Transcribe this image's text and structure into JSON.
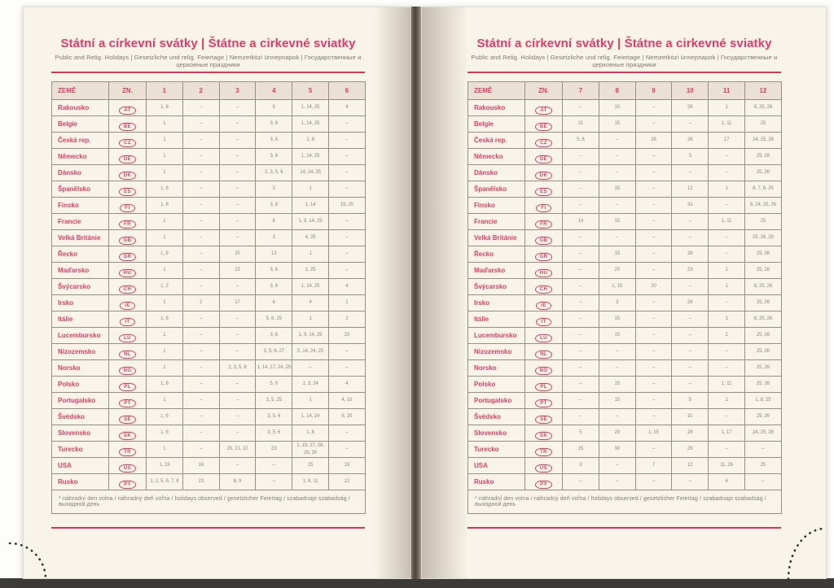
{
  "book": {
    "title": "Státní a církevní svátky | Štátne a cirkevné sviatky",
    "subtitle": "Public and Relig. Holidays | Gesetzliche und relig. Feiertage | Nemzetközi ünnepnapok | Государственные и церковные праздники",
    "footnote": "* náhradní den volna / náhradný deň voľna / holidays observed / gesetzlicher Feiertag / szabadnapi szabadság / выходной день",
    "column_headers": {
      "country": "ZEMĚ",
      "code": "ZN."
    },
    "accent_color": "#e23a69",
    "pages": [
      {
        "months": [
          "1",
          "2",
          "3",
          "4",
          "5",
          "6"
        ],
        "rows": [
          {
            "country": "Rakousko",
            "code": "AT",
            "values": [
              "1, 6",
              "–",
              "–",
              "6",
              "1, 14, 25",
              "4"
            ]
          },
          {
            "country": "Belgie",
            "code": "BE",
            "values": [
              "1",
              "–",
              "–",
              "3, 6",
              "1, 14, 25",
              "–"
            ]
          },
          {
            "country": "Česká rep.",
            "code": "CZ",
            "values": [
              "1",
              "–",
              "–",
              "3, 6",
              "1, 8",
              "–"
            ]
          },
          {
            "country": "Německo",
            "code": "DE",
            "values": [
              "1",
              "–",
              "–",
              "3, 6",
              "1, 14, 25",
              "–"
            ]
          },
          {
            "country": "Dánsko",
            "code": "DK",
            "values": [
              "1",
              "–",
              "–",
              "2, 3, 5, 6",
              "14, 24, 25",
              "–"
            ]
          },
          {
            "country": "Španělsko",
            "code": "ES",
            "values": [
              "1, 6",
              "–",
              "–",
              "3",
              "1",
              "–"
            ]
          },
          {
            "country": "Finsko",
            "code": "FI",
            "values": [
              "1, 6",
              "–",
              "–",
              "3, 6",
              "1, 14",
              "19, 20"
            ]
          },
          {
            "country": "Francie",
            "code": "FR",
            "values": [
              "1",
              "–",
              "–",
              "6",
              "1, 8, 14, 25",
              "–"
            ]
          },
          {
            "country": "Velká Británie",
            "code": "GB",
            "values": [
              "1",
              "–",
              "–",
              "3",
              "4, 25",
              "–"
            ]
          },
          {
            "country": "Řecko",
            "code": "GR",
            "values": [
              "1, 6",
              "–",
              "25",
              "13",
              "1",
              "–"
            ]
          },
          {
            "country": "Maďarsko",
            "code": "HU",
            "values": [
              "1",
              "–",
              "15",
              "3, 6",
              "1, 25",
              "–"
            ]
          },
          {
            "country": "Švýcarsko",
            "code": "CH",
            "values": [
              "1, 2",
              "–",
              "–",
              "3, 6",
              "1, 14, 25",
              "4"
            ]
          },
          {
            "country": "Irsko",
            "code": "IE",
            "values": [
              "1",
              "2",
              "17",
              "6",
              "4",
              "1"
            ]
          },
          {
            "country": "Itálie",
            "code": "IT",
            "values": [
              "1, 6",
              "–",
              "–",
              "5, 6, 25",
              "1",
              "2"
            ]
          },
          {
            "country": "Lucembursko",
            "code": "LU",
            "values": [
              "1",
              "–",
              "–",
              "3, 6",
              "1, 9, 14, 25",
              "23"
            ]
          },
          {
            "country": "Nizozemsko",
            "code": "NL",
            "values": [
              "1",
              "–",
              "–",
              "3, 5, 6, 27",
              "5, 14, 24, 25",
              "–"
            ]
          },
          {
            "country": "Norsko",
            "code": "NO",
            "values": [
              "1",
              "–",
              "2, 3, 5, 6",
              "1, 14, 17, 24, 25",
              "–",
              "–"
            ]
          },
          {
            "country": "Polsko",
            "code": "PL",
            "values": [
              "1, 6",
              "–",
              "–",
              "5, 6",
              "1, 3, 24",
              "4"
            ]
          },
          {
            "country": "Portugalsko",
            "code": "PT",
            "values": [
              "1",
              "–",
              "–",
              "3, 5, 25",
              "1",
              "4, 10"
            ]
          },
          {
            "country": "Švédsko",
            "code": "SE",
            "values": [
              "1, 6",
              "–",
              "–",
              "3, 5, 6",
              "1, 14, 24",
              "6, 20"
            ]
          },
          {
            "country": "Slovensko",
            "code": "SK",
            "values": [
              "1, 6",
              "–",
              "–",
              "3, 5, 6",
              "1, 8",
              "–"
            ]
          },
          {
            "country": "Turecko",
            "code": "TR",
            "values": [
              "1",
              "–",
              "20, 21, 22",
              "23",
              "1, 19, 27, 28, 29, 30",
              "–"
            ]
          },
          {
            "country": "USA",
            "code": "US",
            "values": [
              "1, 19",
              "16",
              "–",
              "–",
              "25",
              "19"
            ]
          },
          {
            "country": "Rusko",
            "code": "PY",
            "values": [
              "1, 2, 5, 6, 7, 8",
              "23",
              "8, 9",
              "–",
              "1, 9, 11",
              "12"
            ]
          }
        ]
      },
      {
        "months": [
          "7",
          "8",
          "9",
          "10",
          "11",
          "12"
        ],
        "rows": [
          {
            "country": "Rakousko",
            "code": "AT",
            "values": [
              "–",
              "15",
              "–",
              "26",
              "1",
              "8, 25, 26"
            ]
          },
          {
            "country": "Belgie",
            "code": "BE",
            "values": [
              "21",
              "15",
              "–",
              "–",
              "1, 11",
              "25"
            ]
          },
          {
            "country": "Česká rep.",
            "code": "CZ",
            "values": [
              "5, 6",
              "–",
              "28",
              "28",
              "17",
              "24, 25, 26"
            ]
          },
          {
            "country": "Německo",
            "code": "DE",
            "values": [
              "–",
              "–",
              "–",
              "3",
              "–",
              "25, 26"
            ]
          },
          {
            "country": "Dánsko",
            "code": "DK",
            "values": [
              "–",
              "–",
              "–",
              "–",
              "–",
              "25, 26"
            ]
          },
          {
            "country": "Španělsko",
            "code": "ES",
            "values": [
              "–",
              "15",
              "–",
              "12",
              "1",
              "6, 7, 8, 25"
            ]
          },
          {
            "country": "Finsko",
            "code": "FI",
            "values": [
              "–",
              "–",
              "–",
              "31",
              "–",
              "6, 24, 25, 26"
            ]
          },
          {
            "country": "Francie",
            "code": "FR",
            "values": [
              "14",
              "15",
              "–",
              "–",
              "1, 11",
              "25"
            ]
          },
          {
            "country": "Velká Británie",
            "code": "GB",
            "values": [
              "–",
              "–",
              "–",
              "–",
              "–",
              "25, 26, 28"
            ]
          },
          {
            "country": "Řecko",
            "code": "GR",
            "values": [
              "–",
              "15",
              "–",
              "28",
              "–",
              "25, 26"
            ]
          },
          {
            "country": "Maďarsko",
            "code": "HU",
            "values": [
              "–",
              "20",
              "–",
              "23",
              "1",
              "25, 26"
            ]
          },
          {
            "country": "Švýcarsko",
            "code": "CH",
            "values": [
              "–",
              "1, 15",
              "20",
              "–",
              "1",
              "8, 25, 26"
            ]
          },
          {
            "country": "Irsko",
            "code": "IE",
            "values": [
              "–",
              "3",
              "–",
              "26",
              "–",
              "25, 26"
            ]
          },
          {
            "country": "Itálie",
            "code": "IT",
            "values": [
              "–",
              "15",
              "–",
              "–",
              "1",
              "8, 25, 26"
            ]
          },
          {
            "country": "Lucembursko",
            "code": "LU",
            "values": [
              "–",
              "15",
              "–",
              "–",
              "1",
              "25, 26"
            ]
          },
          {
            "country": "Nizozemsko",
            "code": "NL",
            "values": [
              "–",
              "–",
              "–",
              "–",
              "–",
              "25, 26"
            ]
          },
          {
            "country": "Norsko",
            "code": "NO",
            "values": [
              "–",
              "–",
              "–",
              "–",
              "–",
              "25, 26"
            ]
          },
          {
            "country": "Polsko",
            "code": "PL",
            "values": [
              "–",
              "15",
              "–",
              "–",
              "1, 11",
              "25, 26"
            ]
          },
          {
            "country": "Portugalsko",
            "code": "PT",
            "values": [
              "–",
              "15",
              "–",
              "5",
              "1",
              "1, 8, 25"
            ]
          },
          {
            "country": "Švédsko",
            "code": "SE",
            "values": [
              "–",
              "–",
              "–",
              "31",
              "–",
              "25, 26"
            ]
          },
          {
            "country": "Slovensko",
            "code": "SK",
            "values": [
              "5",
              "29",
              "1, 15",
              "28",
              "1, 17",
              "24, 25, 26"
            ]
          },
          {
            "country": "Turecko",
            "code": "TR",
            "values": [
              "15",
              "30",
              "–",
              "29",
              "–",
              "–"
            ]
          },
          {
            "country": "USA",
            "code": "US",
            "values": [
              "3",
              "–",
              "7",
              "12",
              "11, 26",
              "25"
            ]
          },
          {
            "country": "Rusko",
            "code": "PY",
            "values": [
              "–",
              "–",
              "–",
              "–",
              "4",
              "–"
            ]
          }
        ]
      }
    ]
  }
}
